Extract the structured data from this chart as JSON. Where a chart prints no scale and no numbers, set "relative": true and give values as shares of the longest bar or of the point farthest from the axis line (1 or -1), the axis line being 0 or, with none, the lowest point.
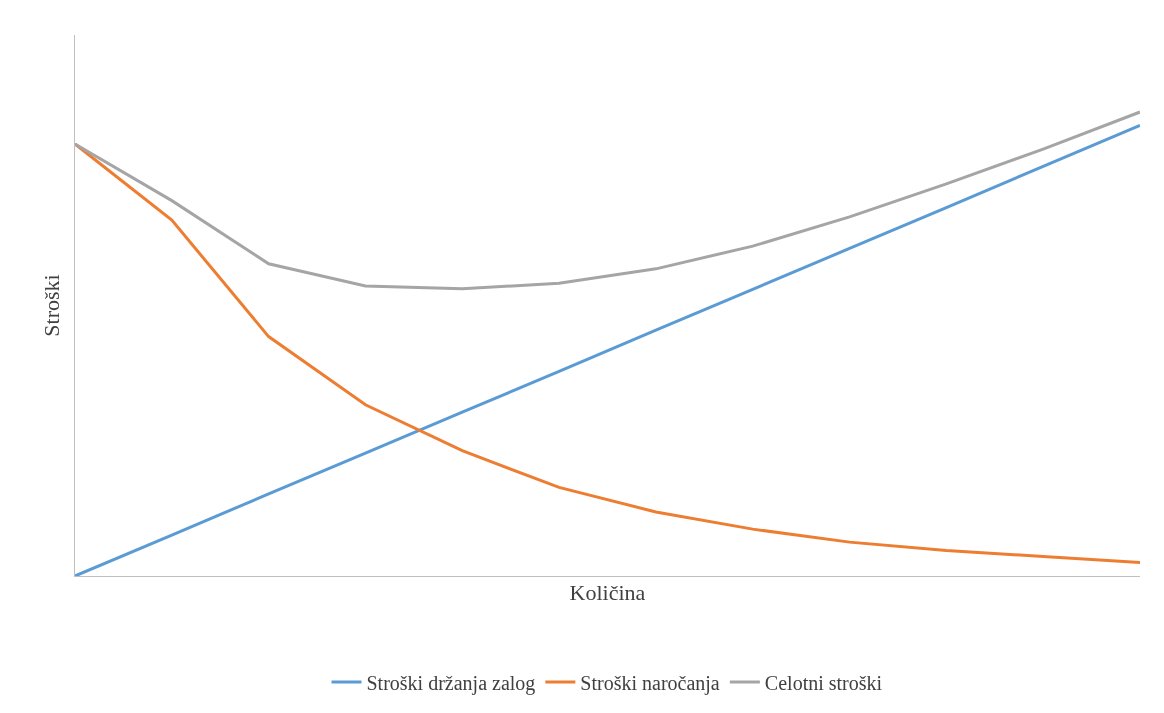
{
  "chart_data": {
    "type": "line",
    "relative": true,
    "xlabel": "Količina",
    "ylabel": "Stroški",
    "categories": [
      null,
      null,
      null,
      null,
      null,
      null,
      null,
      null,
      null,
      null,
      null,
      null
    ],
    "series": [
      {
        "name": "Stroški držanja zalog",
        "color": "#5b9bd5",
        "values": [
          0,
          0.088,
          0.177,
          0.265,
          0.353,
          0.441,
          0.53,
          0.618,
          0.706,
          0.794,
          0.883,
          0.971
        ]
      },
      {
        "name": "Stroški naročanja",
        "color": "#ed7d31",
        "values": [
          0.931,
          0.767,
          0.516,
          0.369,
          0.27,
          0.191,
          0.138,
          0.101,
          0.073,
          0.055,
          0.042,
          0.029
        ]
      },
      {
        "name": "Celotni stroški",
        "color": "#a5a5a5",
        "values": [
          0.931,
          0.809,
          0.673,
          0.625,
          0.619,
          0.631,
          0.662,
          0.711,
          0.774,
          0.845,
          0.92,
          1.0
        ]
      }
    ],
    "legend": "bottom",
    "tick_labels": false,
    "marker": "none",
    "line_style": "solid"
  }
}
